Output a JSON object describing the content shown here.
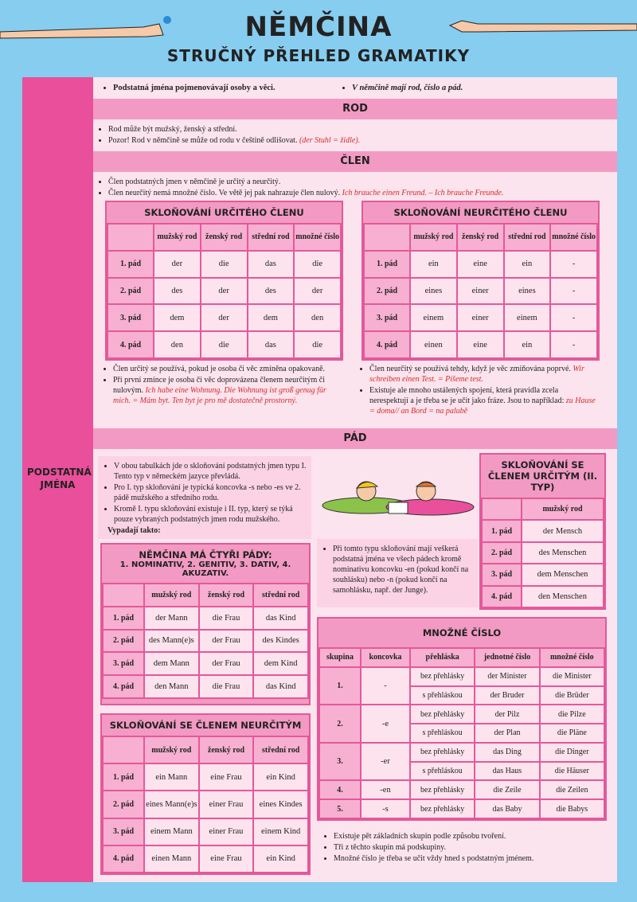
{
  "header": {
    "title": "NĚMČINA",
    "subtitle": "STRUČNÝ PŘEHLED GRAMATIKY"
  },
  "sidebar": "PODSTATNÁ JMÉNA",
  "intro": [
    "Podstatná jména pojmenovávají osoby a věci.",
    "V němčině mají rod, číslo a pád."
  ],
  "rod": {
    "heading": "ROD",
    "bullets": [
      {
        "text": "Rod může být mužský, ženský a střední."
      },
      {
        "text": "Pozor! Rod v němčině se může od rodu v češtině odlišovat.",
        "example": "(der Stuhl = židle)."
      }
    ]
  },
  "clen": {
    "heading": "ČLEN",
    "bullets": [
      {
        "text": "Člen podstatných jmen v němčině je určitý a neurčitý."
      },
      {
        "text": "Člen neurčitý nemá množné číslo. Ve větě jej pak nahrazuje člen nulový.",
        "example": "Ich brauche einen Freund. – Ich brauche Freunde."
      }
    ],
    "table_definite": {
      "title": "SKLOŇOVÁNÍ URČITÉHO ČLENU",
      "columns": [
        "mužský rod",
        "ženský rod",
        "střední rod",
        "množné číslo"
      ],
      "rows": [
        [
          "1. pád",
          "der",
          "die",
          "das",
          "die"
        ],
        [
          "2. pád",
          "des",
          "der",
          "des",
          "der"
        ],
        [
          "3. pád",
          "dem",
          "der",
          "dem",
          "den"
        ],
        [
          "4. pád",
          "den",
          "die",
          "das",
          "die"
        ]
      ]
    },
    "table_indefinite": {
      "title": "SKLOŇOVÁNÍ NEURČITÉHO ČLENU",
      "columns": [
        "mužský rod",
        "ženský rod",
        "střední rod",
        "množné číslo"
      ],
      "rows": [
        [
          "1. pád",
          "ein",
          "eine",
          "ein",
          "-"
        ],
        [
          "2. pád",
          "eines",
          "einer",
          "eines",
          "-"
        ],
        [
          "3. pád",
          "einem",
          "einer",
          "einem",
          "-"
        ],
        [
          "4. pád",
          "einen",
          "eine",
          "ein",
          "-"
        ]
      ]
    },
    "notes_definite": [
      {
        "text": "Člen určitý se používá, pokud je osoba či věc zmíněna opakovaně."
      },
      {
        "text": "Při první zmínce je osoba či věc doprovázena členem neurčitým či nulovým.",
        "example": "Ich habe eine Wohnung. Die Wohnung ist groß genug für mich. = Mám byt. Ten byt je pro mě dostatečně prostorný."
      }
    ],
    "notes_indefinite": [
      {
        "text": "Člen neurčitý se používá tehdy, když je věc zmiňována poprvé.",
        "example": "Wir schreiben einen Test. = Píšeme test."
      },
      {
        "text": "Existuje ale mnoho ustálených spojení, která pravidla zcela nerespektují a je třeba se je učit jako fráze. Jsou to například:",
        "example": "zu Hause = doma// an Bord = na palubě"
      }
    ]
  },
  "pad": {
    "heading": "PÁD",
    "notes": [
      {
        "text": "V obou tabulkách jde o skloňování podstatných jmen typu I. Tento typ v německém jazyce převládá."
      },
      {
        "text": "Pro I. typ skloňování je typická koncovka -s nebo -es ve 2. pádě mužského a středního rodu."
      },
      {
        "text": "Kromě I. typu skloňování existuje i II. typ, který se týká pouze vybraných podstatných jmen rodu mužského."
      }
    ],
    "notes_tail": "Vypadají takto:",
    "table_cases": {
      "title": "NĚMČINA MÁ ČTYŘI PÁDY:",
      "subtitle": "1. NOMINATIV, 2. GENITIV, 3. DATIV, 4. AKUZATIV.",
      "columns": [
        "mužský rod",
        "ženský rod",
        "střední rod"
      ],
      "rows": [
        [
          "1. pád",
          "der Mann",
          "die Frau",
          "das Kind"
        ],
        [
          "2. pád",
          "des Mann(e)s",
          "der Frau",
          "des Kindes"
        ],
        [
          "3. pád",
          "dem Mann",
          "der Frau",
          "dem Kind"
        ],
        [
          "4. pád",
          "den Mann",
          "die Frau",
          "das Kind"
        ]
      ]
    },
    "table_indef": {
      "title": "SKLOŇOVÁNÍ SE ČLENEM NEURČITÝM",
      "columns": [
        "mužský rod",
        "ženský rod",
        "střední rod"
      ],
      "rows": [
        [
          "1. pád",
          "ein Mann",
          "eine Frau",
          "ein Kind"
        ],
        [
          "2. pád",
          "eines Mann(e)s",
          "einer Frau",
          "eines Kindes"
        ],
        [
          "3. pád",
          "einem Mann",
          "einer Frau",
          "einem Kind"
        ],
        [
          "4. pád",
          "einen Mann",
          "eine Frau",
          "ein Kind"
        ]
      ]
    },
    "table_type2": {
      "title": "SKLOŇOVÁNÍ SE ČLENEM URČITÝM (II. TYP)",
      "columns": [
        "mužský rod"
      ],
      "rows": [
        [
          "1. pád",
          "der Mensch"
        ],
        [
          "2. pád",
          "des Menschen"
        ],
        [
          "3. pád",
          "dem Menschen"
        ],
        [
          "4. pád",
          "den Menschen"
        ]
      ]
    },
    "note_type2": "Při tomto typu skloňování mají veškerá podstatná jména ve všech pádech kromě nominativu koncovku -en (pokud končí na souhlásku) nebo -n (pokud končí na samohlásku, např. der Junge)."
  },
  "plural": {
    "title": "MNOŽNÉ ČÍSLO",
    "columns": [
      "skupina",
      "koncovka",
      "přehláska",
      "jednotné číslo",
      "množné číslo"
    ],
    "groups": [
      {
        "group": "1.",
        "ending": "-",
        "rows": [
          [
            "bez přehlásky",
            "der Minister",
            "die Minister"
          ],
          [
            "s přehláskou",
            "der Bruder",
            "die Brüder"
          ]
        ]
      },
      {
        "group": "2.",
        "ending": "-e",
        "rows": [
          [
            "bez přehlásky",
            "der Pilz",
            "die Pilze"
          ],
          [
            "s přehláskou",
            "der Plan",
            "die Pläne"
          ]
        ]
      },
      {
        "group": "3.",
        "ending": "-er",
        "rows": [
          [
            "bez přehlásky",
            "das Ding",
            "die Dinger"
          ],
          [
            "s přehláskou",
            "das Haus",
            "die Häuser"
          ]
        ]
      },
      {
        "group": "4.",
        "ending": "-en",
        "rows": [
          [
            "bez přehlásky",
            "die Zeile",
            "die Zeilen"
          ]
        ]
      },
      {
        "group": "5.",
        "ending": "-s",
        "rows": [
          [
            "bez přehlásky",
            "das Baby",
            "die Babys"
          ]
        ]
      }
    ],
    "notes": [
      "Existuje pět základních skupin podle způsobu tvoření.",
      "Tři z těchto skupin má podskupiny.",
      "Množné číslo je třeba se učit vždy hned s podstatným jménem."
    ]
  }
}
